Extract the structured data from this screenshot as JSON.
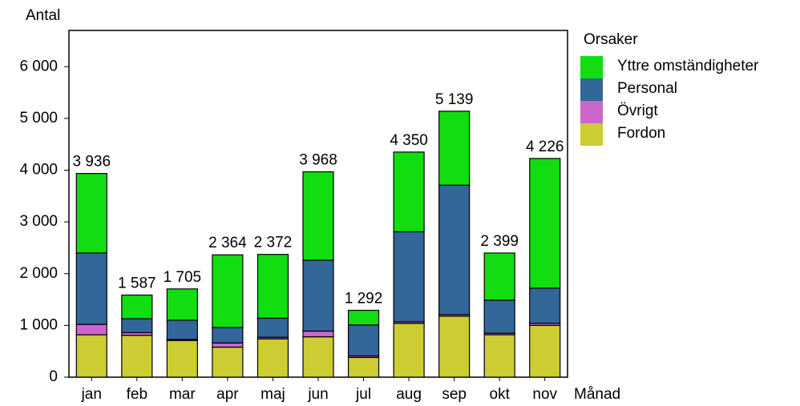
{
  "chart_data": {
    "type": "stacked-bar",
    "y_label": "Antal",
    "x_label": "Månad",
    "categories": [
      "jan",
      "feb",
      "mar",
      "apr",
      "maj",
      "jun",
      "jul",
      "aug",
      "sep",
      "okt",
      "nov"
    ],
    "legend_title": "Orsaker",
    "series": [
      {
        "name": "Fordon",
        "color": "#cccc33",
        "values": [
          820,
          810,
          710,
          580,
          740,
          780,
          380,
          1040,
          1180,
          820,
          1000
        ]
      },
      {
        "name": "Övrigt",
        "color": "#cc66cc",
        "values": [
          200,
          50,
          20,
          80,
          30,
          110,
          30,
          30,
          30,
          30,
          40
        ]
      },
      {
        "name": "Personal",
        "color": "#336699",
        "values": [
          1380,
          270,
          370,
          300,
          370,
          1370,
          600,
          1740,
          2500,
          640,
          680
        ]
      },
      {
        "name": "Yttre omständigheter",
        "color": "#11dd11",
        "values": [
          1536,
          457,
          605,
          1404,
          1232,
          1708,
          282,
          1540,
          1429,
          909,
          2506
        ]
      }
    ],
    "totals": [
      3936,
      1587,
      1705,
      2364,
      2372,
      3968,
      1292,
      4350,
      5139,
      2399,
      4226
    ],
    "total_labels": [
      "3 936",
      "1 587",
      "1 705",
      "2 364",
      "2 372",
      "3 968",
      "1 292",
      "4 350",
      "5 139",
      "2 399",
      "4 226"
    ],
    "ylim": [
      0,
      6700
    ],
    "yticks": [
      0,
      {
        "value": 1000,
        "label": "1 000"
      },
      {
        "value": 2000,
        "label": "2 000"
      },
      {
        "value": 3000,
        "label": "3 000"
      },
      {
        "value": 4000,
        "label": "4 000"
      },
      {
        "value": 5000,
        "label": "5 000"
      },
      {
        "value": 6000,
        "label": "6 000"
      }
    ]
  }
}
